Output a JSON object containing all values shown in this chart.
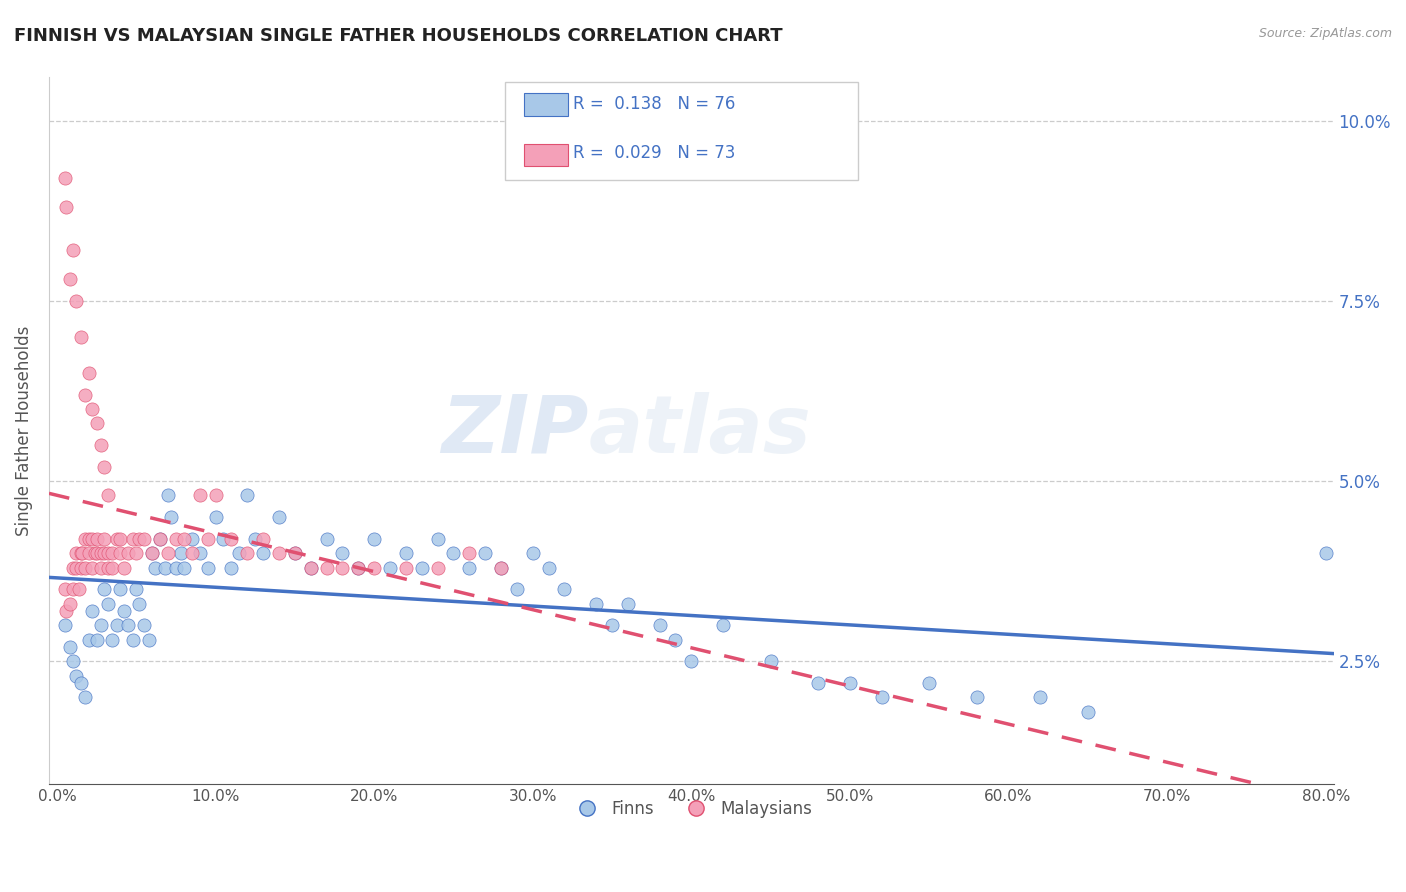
{
  "title": "FINNISH VS MALAYSIAN SINGLE FATHER HOUSEHOLDS CORRELATION CHART",
  "source": "Source: ZipAtlas.com",
  "ylabel": "Single Father Households",
  "xlim": [
    -0.005,
    0.805
  ],
  "ylim": [
    0.008,
    0.106
  ],
  "yticks": [
    0.025,
    0.05,
    0.075,
    0.1
  ],
  "ytick_labels": [
    "2.5%",
    "5.0%",
    "7.5%",
    "10.0%"
  ],
  "xticks": [
    0.0,
    0.1,
    0.2,
    0.3,
    0.4,
    0.5,
    0.6,
    0.7,
    0.8
  ],
  "xtick_labels": [
    "0.0%",
    "10.0%",
    "20.0%",
    "30.0%",
    "40.0%",
    "50.0%",
    "60.0%",
    "70.0%",
    "80.0%"
  ],
  "finns_R": 0.138,
  "finns_N": 76,
  "malaysians_R": 0.029,
  "malaysians_N": 73,
  "finn_color": "#a8c8e8",
  "malaysian_color": "#f4a0b8",
  "finn_line_color": "#4472c4",
  "malaysian_line_color": "#e05070",
  "watermark": "ZIPatlas",
  "legend_finn_label": "Finns",
  "legend_malaysian_label": "Malaysians",
  "finns_x": [
    0.005,
    0.008,
    0.01,
    0.012,
    0.015,
    0.018,
    0.02,
    0.022,
    0.025,
    0.028,
    0.03,
    0.032,
    0.035,
    0.038,
    0.04,
    0.042,
    0.045,
    0.048,
    0.05,
    0.052,
    0.055,
    0.058,
    0.06,
    0.062,
    0.065,
    0.068,
    0.07,
    0.072,
    0.075,
    0.078,
    0.08,
    0.085,
    0.09,
    0.095,
    0.1,
    0.105,
    0.11,
    0.115,
    0.12,
    0.125,
    0.13,
    0.14,
    0.15,
    0.16,
    0.17,
    0.18,
    0.19,
    0.2,
    0.21,
    0.22,
    0.23,
    0.24,
    0.25,
    0.26,
    0.27,
    0.28,
    0.29,
    0.3,
    0.31,
    0.32,
    0.34,
    0.35,
    0.36,
    0.38,
    0.39,
    0.4,
    0.42,
    0.45,
    0.48,
    0.5,
    0.52,
    0.55,
    0.58,
    0.62,
    0.65,
    0.8
  ],
  "finns_y": [
    0.03,
    0.027,
    0.025,
    0.023,
    0.022,
    0.02,
    0.028,
    0.032,
    0.028,
    0.03,
    0.035,
    0.033,
    0.028,
    0.03,
    0.035,
    0.032,
    0.03,
    0.028,
    0.035,
    0.033,
    0.03,
    0.028,
    0.04,
    0.038,
    0.042,
    0.038,
    0.048,
    0.045,
    0.038,
    0.04,
    0.038,
    0.042,
    0.04,
    0.038,
    0.045,
    0.042,
    0.038,
    0.04,
    0.048,
    0.042,
    0.04,
    0.045,
    0.04,
    0.038,
    0.042,
    0.04,
    0.038,
    0.042,
    0.038,
    0.04,
    0.038,
    0.042,
    0.04,
    0.038,
    0.04,
    0.038,
    0.035,
    0.04,
    0.038,
    0.035,
    0.033,
    0.03,
    0.033,
    0.03,
    0.028,
    0.025,
    0.03,
    0.025,
    0.022,
    0.022,
    0.02,
    0.022,
    0.02,
    0.02,
    0.018,
    0.04
  ],
  "malaysians_x": [
    0.005,
    0.006,
    0.008,
    0.01,
    0.01,
    0.012,
    0.012,
    0.014,
    0.015,
    0.015,
    0.016,
    0.018,
    0.018,
    0.02,
    0.02,
    0.022,
    0.022,
    0.024,
    0.025,
    0.025,
    0.028,
    0.028,
    0.03,
    0.03,
    0.032,
    0.032,
    0.035,
    0.035,
    0.038,
    0.04,
    0.04,
    0.042,
    0.045,
    0.048,
    0.05,
    0.052,
    0.055,
    0.06,
    0.065,
    0.07,
    0.075,
    0.08,
    0.085,
    0.09,
    0.095,
    0.1,
    0.11,
    0.12,
    0.13,
    0.14,
    0.15,
    0.16,
    0.17,
    0.18,
    0.19,
    0.2,
    0.22,
    0.24,
    0.26,
    0.28,
    0.005,
    0.006,
    0.008,
    0.01,
    0.012,
    0.015,
    0.018,
    0.02,
    0.022,
    0.025,
    0.028,
    0.03,
    0.032
  ],
  "malaysians_y": [
    0.035,
    0.032,
    0.033,
    0.035,
    0.038,
    0.038,
    0.04,
    0.035,
    0.038,
    0.04,
    0.04,
    0.042,
    0.038,
    0.04,
    0.042,
    0.042,
    0.038,
    0.04,
    0.04,
    0.042,
    0.038,
    0.04,
    0.04,
    0.042,
    0.038,
    0.04,
    0.038,
    0.04,
    0.042,
    0.04,
    0.042,
    0.038,
    0.04,
    0.042,
    0.04,
    0.042,
    0.042,
    0.04,
    0.042,
    0.04,
    0.042,
    0.042,
    0.04,
    0.048,
    0.042,
    0.048,
    0.042,
    0.04,
    0.042,
    0.04,
    0.04,
    0.038,
    0.038,
    0.038,
    0.038,
    0.038,
    0.038,
    0.038,
    0.04,
    0.038,
    0.092,
    0.088,
    0.078,
    0.082,
    0.075,
    0.07,
    0.062,
    0.065,
    0.06,
    0.058,
    0.055,
    0.052,
    0.048
  ]
}
